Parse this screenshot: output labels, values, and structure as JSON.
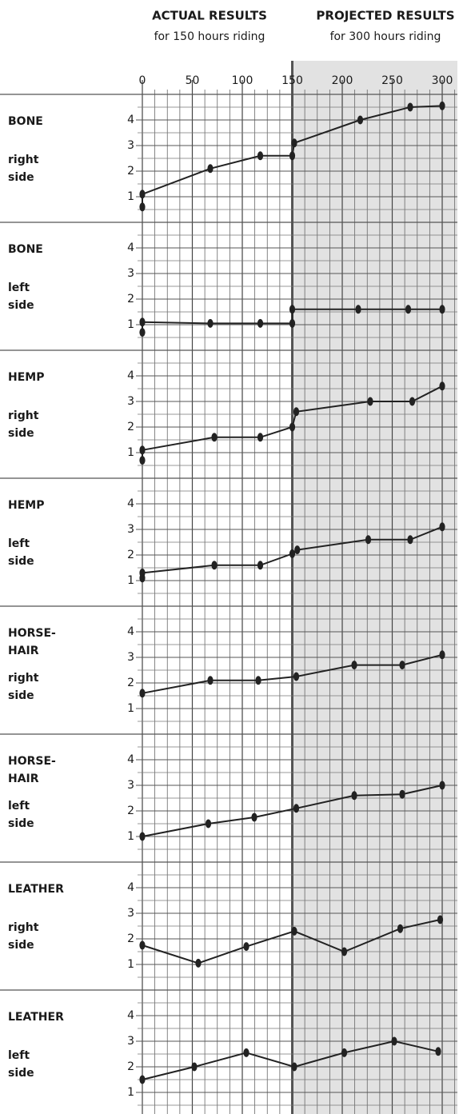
{
  "headers": {
    "actual": "ACTUAL RESULTS",
    "actual_sub": "for 150 hours riding",
    "projected": "PROJECTED RESULTS",
    "projected_sub": "for 300 hours riding"
  },
  "chart_data": {
    "type": "line",
    "xlim": [
      0,
      300
    ],
    "xticks": [
      0,
      50,
      100,
      150,
      200,
      250,
      300
    ],
    "ylim": [
      0,
      5
    ],
    "yticks": [
      1,
      2,
      3,
      4
    ],
    "grid": true,
    "color": "#222222",
    "shaded_region": {
      "xlim": [
        150,
        300
      ],
      "color": "#e2e2e2"
    },
    "panels": [
      {
        "label_lines": [
          "BONE",
          "right",
          "side"
        ],
        "x": [
          0,
          0,
          68,
          118,
          150,
          152,
          218,
          268,
          300
        ],
        "values": [
          0.6,
          1.1,
          2.1,
          2.6,
          2.6,
          3.1,
          4.0,
          4.5,
          4.55
        ]
      },
      {
        "label_lines": [
          "BONE",
          "left",
          "side"
        ],
        "x": [
          0,
          0,
          68,
          118,
          150,
          150,
          216,
          266,
          300
        ],
        "values": [
          0.7,
          1.1,
          1.05,
          1.05,
          1.05,
          1.6,
          1.6,
          1.6,
          1.6
        ]
      },
      {
        "label_lines": [
          "HEMP",
          "right",
          "side"
        ],
        "x": [
          0,
          0,
          72,
          118,
          150,
          154,
          228,
          270,
          300
        ],
        "values": [
          0.7,
          1.1,
          1.6,
          1.6,
          2.0,
          2.6,
          3.0,
          3.0,
          3.6
        ]
      },
      {
        "label_lines": [
          "HEMP",
          "left",
          "side"
        ],
        "x": [
          0,
          0,
          72,
          118,
          150,
          155,
          226,
          268,
          300
        ],
        "values": [
          1.1,
          1.3,
          1.6,
          1.6,
          2.05,
          2.2,
          2.6,
          2.6,
          3.1
        ]
      },
      {
        "label_lines": [
          "HORSE-",
          "HAIR",
          "right",
          "side"
        ],
        "x": [
          0,
          68,
          116,
          154,
          212,
          260,
          300
        ],
        "values": [
          1.6,
          2.1,
          2.1,
          2.25,
          2.7,
          2.7,
          3.1
        ]
      },
      {
        "label_lines": [
          "HORSE-",
          "HAIR",
          "left",
          "side"
        ],
        "x": [
          0,
          66,
          112,
          154,
          212,
          260,
          300
        ],
        "values": [
          1.0,
          1.5,
          1.75,
          2.1,
          2.6,
          2.65,
          3.0
        ]
      },
      {
        "label_lines": [
          "LEATHER",
          "right",
          "side"
        ],
        "x": [
          0,
          56,
          104,
          152,
          202,
          258,
          298
        ],
        "values": [
          1.75,
          1.05,
          1.7,
          2.3,
          1.5,
          2.4,
          2.75
        ]
      },
      {
        "label_lines": [
          "LEATHER",
          "left",
          "side"
        ],
        "x": [
          0,
          52,
          104,
          152,
          202,
          252,
          296
        ],
        "values": [
          1.5,
          2.0,
          2.55,
          2.0,
          2.55,
          3.0,
          2.6
        ]
      }
    ]
  }
}
